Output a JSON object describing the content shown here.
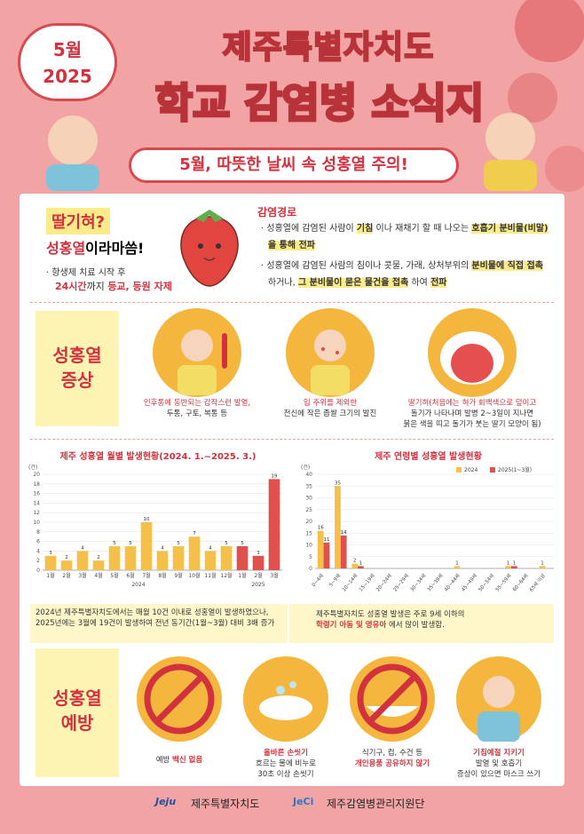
{
  "header": {
    "month": "5월",
    "year": "2025",
    "title_top": "제주특별자치도",
    "title_main": "학교 감염병 소식지",
    "banner": "5월, 따뜻한 날씨 속 성홍열 주의!"
  },
  "intro": {
    "question": "딸기혀?",
    "disease_name": "성홍열",
    "disease_suffix": "이라마씀!",
    "note_line1": "· 항생제 치료 시작 후",
    "note_line2_em": "24시간",
    "note_line2_mid": "까지 ",
    "note_line2_end": "등교, 등원 자제"
  },
  "transmission": {
    "title": "감염경로",
    "items": [
      [
        "성홍열에 감염된 사람이 ",
        "기침",
        " 이나 재채기 할 때 나오는 ",
        "호흡기 분비물(비말)을 통해 전파"
      ],
      [
        "성홍열에 감염된 사람의 침이나 콧물, 가래, 상처부위의 ",
        "분비물에 직접 접촉",
        " 하거나, ",
        "그 분비물이 묻은 물건을 접촉",
        " 하여 ",
        "전파"
      ]
    ]
  },
  "symptoms": {
    "title": [
      "성홍열",
      "증상"
    ],
    "items": [
      {
        "em": "인후통에 동반되는 갑작스런 발열,",
        "lines": [
          "두통, 구토, 복통 등"
        ]
      },
      {
        "em": "입 주위를 제외한",
        "lines": [
          "전신에 작은 좁쌀 크기의 발진"
        ]
      },
      {
        "em": "딸기혀(처음에는 혀가 회백색으로 덮이고",
        "lines": [
          "돌기가 나타나며 발병 2~3일이 지나면",
          "붉은 색을 띠고 돌기가 붓는 딸기 모양이 됨)"
        ]
      }
    ]
  },
  "chart_data": [
    {
      "type": "bar",
      "title": "제주 성홍열 월별 발생현황(2024. 1.~2025. 3.)",
      "y_label": "(건)",
      "categories": [
        "1월",
        "2월",
        "3월",
        "4월",
        "5월",
        "6월",
        "7월",
        "8월",
        "9월",
        "10월",
        "11월",
        "12월",
        "1월",
        "2월",
        "3월"
      ],
      "series": [
        {
          "name": "2024",
          "color": "#f4c04a",
          "values": [
            3,
            2,
            4,
            2,
            5,
            5,
            10,
            4,
            5,
            7,
            4,
            5,
            null,
            null,
            null
          ]
        },
        {
          "name": "2025",
          "color": "#e0504c",
          "values": [
            null,
            null,
            null,
            null,
            null,
            null,
            null,
            null,
            null,
            null,
            null,
            null,
            5,
            3,
            19
          ]
        }
      ],
      "ylim": [
        0,
        20
      ],
      "yticks": [
        0,
        2,
        4,
        6,
        8,
        10,
        12,
        14,
        16,
        18,
        20
      ],
      "grid": true,
      "legend": "below-axis"
    },
    {
      "type": "bar",
      "title": "제주 연령별 성홍열 발생현황",
      "y_label": "(건)",
      "categories": [
        "0~4세",
        "5~9세",
        "10~14세",
        "15~19세",
        "20~24세",
        "25~29세",
        "30~34세",
        "35~39세",
        "40~44세",
        "45~49세",
        "50~54세",
        "55~59세",
        "60~64세",
        "65세 이상"
      ],
      "series": [
        {
          "name": "2024",
          "color": "#f4c04a",
          "values": [
            16,
            35,
            2,
            0,
            0,
            0,
            0,
            0,
            1,
            0,
            0,
            1,
            0,
            1
          ]
        },
        {
          "name": "2025(1~3월)",
          "color": "#e0504c",
          "values": [
            11,
            14,
            1,
            0,
            0,
            0,
            0,
            0,
            0,
            0,
            0,
            1,
            0,
            0
          ]
        }
      ],
      "ylim": [
        0,
        40
      ],
      "yticks": [
        0,
        5,
        10,
        15,
        20,
        25,
        30,
        35,
        40
      ],
      "grid": true,
      "legend": "top-right"
    }
  ],
  "notes": [
    {
      "plain": "2024년 제주특별자치도에서는 매월 10건 이내로 성홍열이 발생하였으나, 2025년에는 3월에 19건이 발생하여 전년 동기간(1월~3월) 대비 3배 증가",
      "bold": ""
    },
    {
      "plain": "제주특별자치도 성홍열 발생은 주로 9세 이하의",
      "bold": "학령기 아동 및 영유아",
      "tail": " 에서 많이 발생함."
    }
  ],
  "prevention": {
    "title": [
      "성홍열",
      "예방"
    ],
    "items": [
      {
        "pre": "예방 ",
        "em": "백신 없음",
        "lines": []
      },
      {
        "pre": "",
        "em": "올바른 손씻기",
        "lines": [
          "흐르는 물에 비누로",
          "30초 이상 손씻기"
        ]
      },
      {
        "pre": "",
        "em": "개인용품 공유하지 않기",
        "lines": [
          "식기구, 컵, 수건 등"
        ],
        "em_last": true
      },
      {
        "pre": "",
        "em": "기침예절 지키기",
        "lines": [
          "발열 및 호흡기",
          "증상이 있으면 마스크 쓰기"
        ]
      }
    ]
  },
  "footer": {
    "logo1": "Jeju",
    "org1": "제주특별자치도",
    "logo2": "JeCi",
    "org2": "제주감염병관리지원단"
  }
}
